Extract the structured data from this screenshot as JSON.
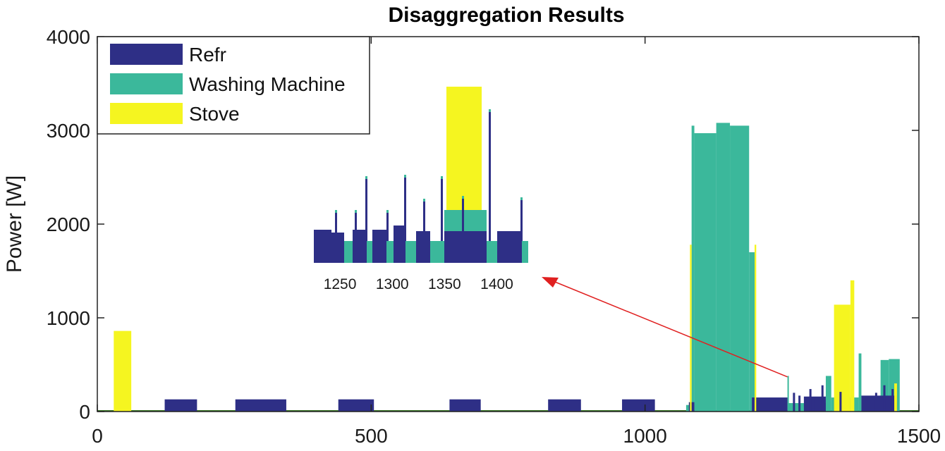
{
  "chart_data": {
    "type": "area",
    "title": "Disaggregation Results",
    "xlabel": "",
    "ylabel": "Power [W]",
    "xlim": [
      0,
      1500
    ],
    "ylim": [
      0,
      4000
    ],
    "x_ticks": [
      "0",
      "500",
      "1000",
      "1500"
    ],
    "y_ticks": [
      "0",
      "1000",
      "2000",
      "3000",
      "4000"
    ],
    "legend_position": "top-left",
    "colors": {
      "Refr": "#2e2f86",
      "Washing Machine": "#3bb89b",
      "Stove": "#f5f520",
      "arrow": "#e02020"
    },
    "series": [
      {
        "name": "Refr",
        "segments": [
          {
            "x": [
              123,
              182
            ],
            "y": 130
          },
          {
            "x": [
              252,
              345
            ],
            "y": 130
          },
          {
            "x": [
              440,
              505
            ],
            "y": 130
          },
          {
            "x": [
              643,
              700
            ],
            "y": 130
          },
          {
            "x": [
              823,
              883
            ],
            "y": 130
          },
          {
            "x": [
              958,
              1018
            ],
            "y": 130
          },
          {
            "x": [
              1080,
              1090
            ],
            "y": 100
          },
          {
            "x": [
              1195,
              1260
            ],
            "y": 150
          },
          {
            "x": [
              1290,
              1330
            ],
            "y": 160
          },
          {
            "x": [
              1345,
              1365
            ],
            "y": 150
          },
          {
            "x": [
              1395,
              1460
            ],
            "y": 170
          }
        ]
      },
      {
        "name": "Washing Machine",
        "segments": [
          {
            "x": [
              1075,
              1085
            ],
            "y": 70
          },
          {
            "x": [
              1085,
              1090
            ],
            "y": 3050
          },
          {
            "x": [
              1090,
              1130
            ],
            "y": 2970
          },
          {
            "x": [
              1130,
              1155
            ],
            "y": 3080
          },
          {
            "x": [
              1155,
              1190
            ],
            "y": 3050
          },
          {
            "x": [
              1190,
              1200
            ],
            "y": 1700
          },
          {
            "x": [
              1200,
              1260
            ],
            "y": 80
          },
          {
            "x": [
              1260,
              1262
            ],
            "y": 380
          },
          {
            "x": [
              1262,
              1330
            ],
            "y": 90
          },
          {
            "x": [
              1330,
              1340
            ],
            "y": 380
          },
          {
            "x": [
              1340,
              1390
            ],
            "y": 150
          },
          {
            "x": [
              1390,
              1395
            ],
            "y": 620
          },
          {
            "x": [
              1395,
              1430
            ],
            "y": 100
          },
          {
            "x": [
              1430,
              1445
            ],
            "y": 550
          },
          {
            "x": [
              1445,
              1465
            ],
            "y": 560
          }
        ]
      },
      {
        "name": "Stove",
        "segments": [
          {
            "x": [
              30,
              62
            ],
            "y": 860
          },
          {
            "x": [
              1082,
              1085
            ],
            "y": 1780
          },
          {
            "x": [
              1200,
              1203
            ],
            "y": 1780
          },
          {
            "x": [
              1345,
              1375
            ],
            "y": 1140
          },
          {
            "x": [
              1375,
              1382
            ],
            "y": 1400
          },
          {
            "x": [
              1455,
              1460
            ],
            "y": 300
          }
        ]
      }
    ],
    "inset": {
      "x_ticks": [
        "1250",
        "1300",
        "1350",
        "1400"
      ],
      "xlim": [
        1225,
        1430
      ],
      "zoom_source_x": 1260,
      "zoom_source_y": 370
    }
  }
}
